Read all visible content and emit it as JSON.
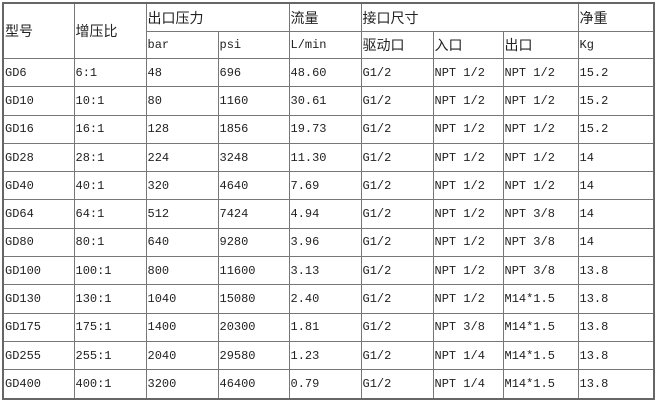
{
  "header": {
    "model": "型号",
    "ratio": "增压比",
    "outlet_pressure": "出口压力",
    "bar": "bar",
    "psi": "psi",
    "flow": "流量",
    "flow_unit": "L/min",
    "port_size": "接口尺寸",
    "drive_port": "驱动口",
    "inlet": "入口",
    "outlet": "出口",
    "weight": "净重",
    "weight_unit": "Kg"
  },
  "rows": [
    [
      "GD6",
      "6:1",
      "48",
      "696",
      "48.60",
      "G1/2",
      "NPT 1/2",
      "NPT 1/2",
      "15.2"
    ],
    [
      "GD10",
      "10:1",
      "80",
      "1160",
      "30.61",
      "G1/2",
      "NPT 1/2",
      "NPT 1/2",
      "15.2"
    ],
    [
      "GD16",
      "16:1",
      "128",
      "1856",
      "19.73",
      "G1/2",
      "NPT 1/2",
      "NPT 1/2",
      "15.2"
    ],
    [
      "GD28",
      "28:1",
      "224",
      "3248",
      "11.30",
      "G1/2",
      "NPT 1/2",
      "NPT 1/2",
      "14"
    ],
    [
      "GD40",
      "40:1",
      "320",
      "4640",
      "7.69",
      "G1/2",
      "NPT 1/2",
      "NPT 1/2",
      "14"
    ],
    [
      "GD64",
      "64:1",
      "512",
      "7424",
      "4.94",
      "G1/2",
      "NPT 1/2",
      "NPT 3/8",
      "14"
    ],
    [
      "GD80",
      "80:1",
      "640",
      "9280",
      "3.96",
      "G1/2",
      "NPT 1/2",
      "NPT 3/8",
      "14"
    ],
    [
      "GD100",
      "100:1",
      "800",
      "11600",
      "3.13",
      "G1/2",
      "NPT 1/2",
      "NPT 3/8",
      "13.8"
    ],
    [
      "GD130",
      "130:1",
      "1040",
      "15080",
      "2.40",
      "G1/2",
      "NPT 1/2",
      "M14*1.5",
      "13.8"
    ],
    [
      "GD175",
      "175:1",
      "1400",
      "20300",
      "1.81",
      "G1/2",
      "NPT 3/8",
      "M14*1.5",
      "13.8"
    ],
    [
      "GD255",
      "255:1",
      "2040",
      "29580",
      "1.23",
      "G1/2",
      "NPT 1/4",
      "M14*1.5",
      "13.8"
    ],
    [
      "GD400",
      "400:1",
      "3200",
      "46400",
      "0.79",
      "G1/2",
      "NPT 1/4",
      "M14*1.5",
      "13.8"
    ]
  ]
}
